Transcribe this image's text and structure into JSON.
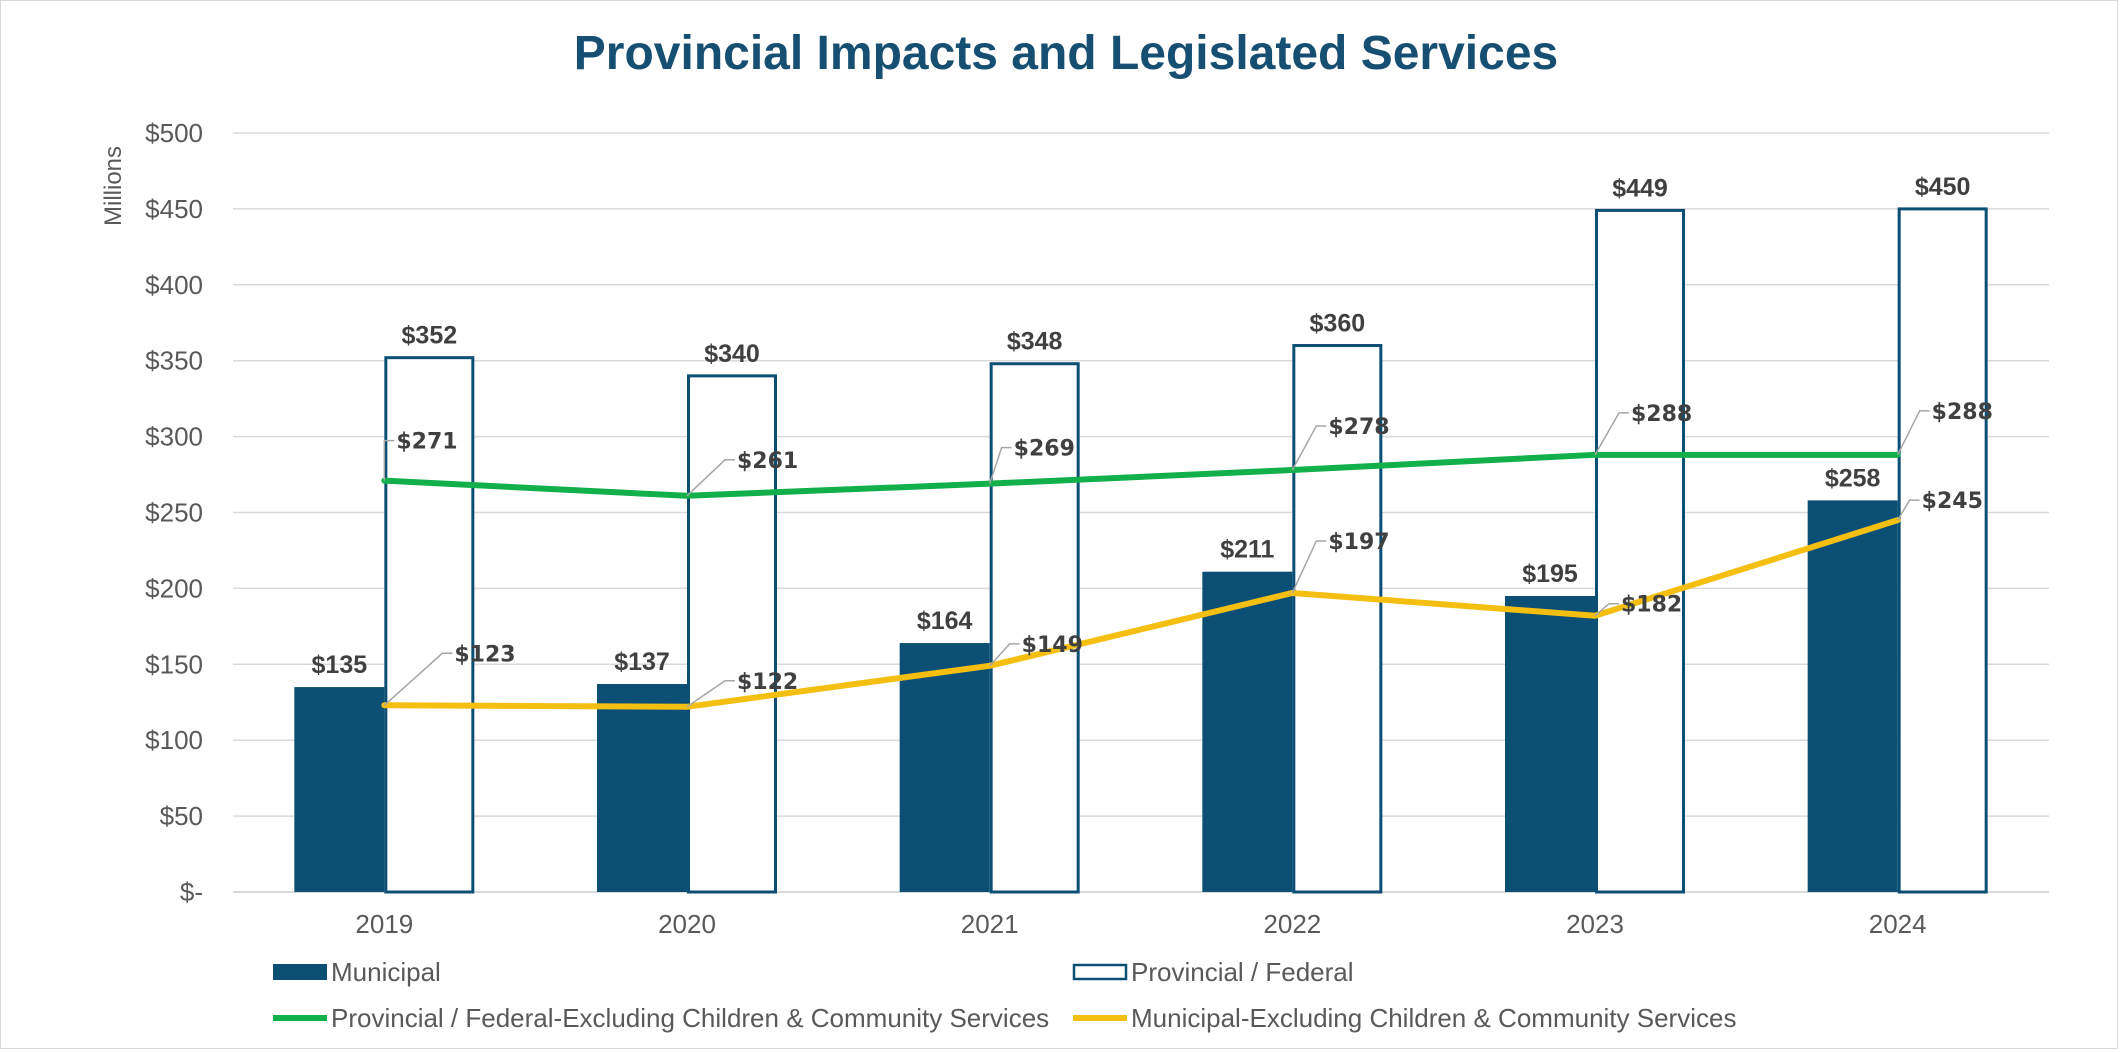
{
  "colors": {
    "title": "#174f72",
    "municipal": "#0b4f75",
    "provincial_outline": "#0b4f75",
    "provincial_excl_line": "#12b04b",
    "municipal_excl_line": "#f5bf12",
    "grid": "#d9d9d9",
    "axis_text": "#595959"
  },
  "chart_data": {
    "type": "bar",
    "title": "Provincial Impacts and Legislated Services",
    "y_unit_label": "Millions",
    "categories": [
      "2019",
      "2020",
      "2021",
      "2022",
      "2023",
      "2024"
    ],
    "ylim": [
      0,
      500
    ],
    "y_ticks": [
      0,
      50,
      100,
      150,
      200,
      250,
      300,
      350,
      400,
      450,
      500
    ],
    "y_tick_labels": [
      "$-",
      "$50",
      "$100",
      "$150",
      "$200",
      "$250",
      "$300",
      "$350",
      "$400",
      "$450",
      "$500"
    ],
    "grid": true,
    "legend_position": "bottom",
    "series": [
      {
        "name": "Municipal",
        "kind": "bar-filled",
        "values": [
          135,
          137,
          164,
          211,
          195,
          258
        ],
        "labels": [
          "$135",
          "$137",
          "$164",
          "$211",
          "$195",
          "$258"
        ]
      },
      {
        "name": "Provincial / Federal",
        "kind": "bar-outline",
        "values": [
          352,
          340,
          348,
          360,
          449,
          450
        ],
        "labels": [
          "$352",
          "$340",
          "$348",
          "$360",
          "$449",
          "$450"
        ]
      },
      {
        "name": "Provincial / Federal-Excluding Children & Community Services",
        "kind": "line",
        "values": [
          271,
          261,
          269,
          278,
          288,
          288
        ],
        "labels": [
          "$271",
          "$261",
          "$269",
          "$278",
          "$288",
          "$288"
        ]
      },
      {
        "name": "Municipal-Excluding Children & Community Services",
        "kind": "line",
        "values": [
          123,
          122,
          149,
          197,
          182,
          245
        ],
        "labels": [
          "$123",
          "$122",
          "$149",
          "$197",
          "$182",
          "$245"
        ]
      }
    ]
  }
}
